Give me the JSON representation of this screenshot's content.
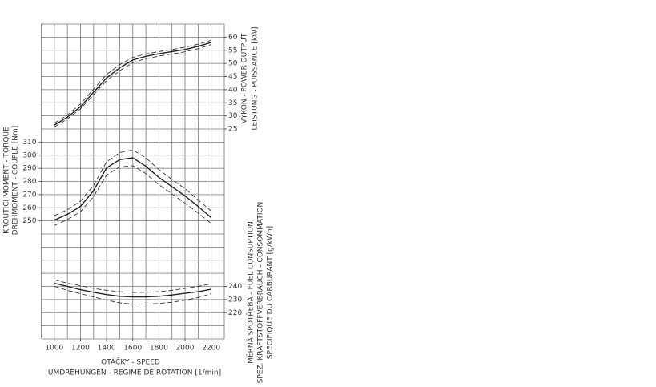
{
  "chart_data": {
    "type": "line",
    "x": [
      1000,
      1100,
      1200,
      1300,
      1400,
      1500,
      1600,
      1700,
      1800,
      1900,
      2000,
      2100,
      2200
    ],
    "xlim": [
      900,
      2300
    ],
    "xticks": [
      1000,
      1200,
      1400,
      1600,
      1800,
      2000,
      2200
    ],
    "xlabel": [
      "OTÁČKY - SPEED",
      "UMDREHUNGEN - REGIME DE ROTATION [1/min]"
    ],
    "panels": [
      {
        "ylabel": [
          "VÝKON - POWER OUTPUT",
          "LEISTUNG - PUISSANCE [kW]"
        ],
        "axis_side": "right",
        "ylim": [
          25,
          65
        ],
        "yticks": [
          25,
          30,
          35,
          40,
          45,
          50,
          55,
          60
        ],
        "series": [
          {
            "color": "#222222",
            "style": "solid",
            "values": [
              26.5,
              29.5,
              33.5,
              39,
              44.5,
              48.3,
              51.3,
              52.7,
              53.7,
              54.5,
              55.3,
              56.5,
              58
            ]
          },
          {
            "color": "#333333",
            "style": "dashed",
            "values": [
              27.2,
              30.3,
              34.5,
              40.2,
              45.8,
              49.5,
              52.3,
              53.6,
              54.5,
              55.3,
              56.2,
              57.3,
              58.8
            ]
          },
          {
            "color": "#333333",
            "style": "dashed",
            "values": [
              25.8,
              28.8,
              32.7,
              38,
              43.5,
              47.2,
              50.3,
              51.8,
              52.8,
              53.6,
              54.4,
              55.6,
              57.2
            ]
          }
        ]
      },
      {
        "ylabel": [
          "KROUTÍCÍ MOMENT - TORQUE",
          "DREHMOMENT - COUPLE [Nm]"
        ],
        "axis_side": "left",
        "ylim": [
          250,
          310
        ],
        "yticks": [
          250,
          260,
          270,
          280,
          290,
          300,
          310
        ],
        "series": [
          {
            "color": "#222222",
            "style": "solid",
            "values": [
              250.6,
              255,
              261,
              273,
              290.4,
              296.6,
              298,
              291.6,
              283,
              276,
              269,
              261,
              252.5
            ]
          },
          {
            "color": "#333333",
            "style": "dashed",
            "values": [
              254,
              258.5,
              265,
              277,
              295,
              302,
              304,
              298,
              289,
              281.5,
              274.5,
              266,
              257.5
            ]
          },
          {
            "color": "#333333",
            "style": "dashed",
            "values": [
              246.5,
              251,
              257,
              268.5,
              285,
              291,
              292,
              286,
              277.5,
              270.5,
              263.5,
              256,
              248
            ]
          }
        ]
      },
      {
        "ylabel": [
          "MĚRNÁ SPOTŘEBA - FUEL CONSUPTION",
          "SPEZ. KRAFTSTOFFVERBRAUCH - CONSOMMATION",
          "SPECIFIQUE DU CARBURANT [g/kWh]"
        ],
        "axis_side": "right",
        "ylim": [
          220,
          240
        ],
        "yticks": [
          220,
          230,
          240
        ],
        "series": [
          {
            "color": "#222222",
            "style": "solid",
            "values": [
              242.4,
              240,
              237.5,
              235.5,
              233.8,
              232.5,
              232,
              232,
              232.5,
              233.5,
              234.8,
              236,
              237.8
            ]
          },
          {
            "color": "#333333",
            "style": "dashed",
            "values": [
              245,
              242.5,
              240.5,
              238.5,
              237,
              236,
              235.5,
              235.5,
              236,
              237,
              238.5,
              240,
              242
            ]
          },
          {
            "color": "#333333",
            "style": "dashed",
            "values": [
              240,
              237,
              234.5,
              232,
              229.5,
              227.5,
              226.5,
              226.5,
              227,
              228,
              229.5,
              231.5,
              234.5
            ]
          }
        ]
      }
    ]
  }
}
